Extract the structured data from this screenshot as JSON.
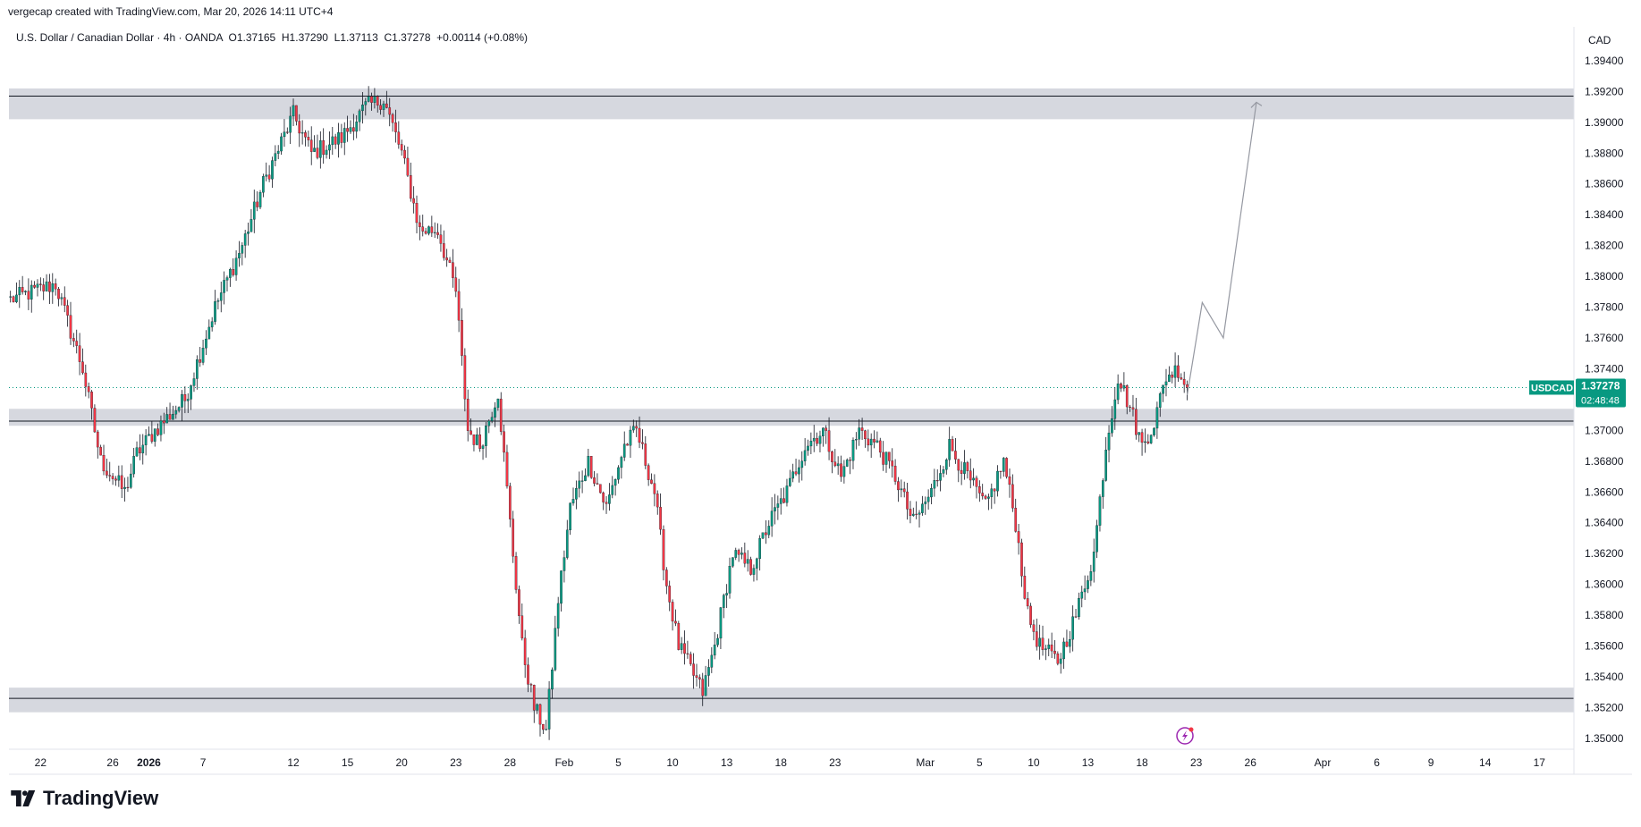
{
  "header": {
    "text": "vergecap created with TradingView.com, Mar 20, 2026 14:11 UTC+4"
  },
  "legend": {
    "symbol_name": "U.S. Dollar / Canadian Dollar",
    "interval": "4h",
    "broker": "OANDA",
    "open": "O1.37165",
    "high": "H1.37290",
    "low": "L1.37113",
    "close": "C1.37278",
    "change": "+0.00114 (+0.08%)"
  },
  "brand": {
    "name": "TradingView"
  },
  "colors": {
    "up": "#089981",
    "down": "#f23645",
    "wick": "#131722",
    "zone": "#d1d4dc",
    "price_tag": "#089981"
  },
  "chart_data": {
    "type": "candlestick",
    "currency_label": "CAD",
    "price_tag": {
      "symbol": "USDCAD",
      "price": "1.37278",
      "countdown": "02:48:48",
      "value": 1.37278
    },
    "y_ticks": [
      "1.39400",
      "1.39200",
      "1.39000",
      "1.38800",
      "1.38600",
      "1.38400",
      "1.38200",
      "1.38000",
      "1.37800",
      "1.37600",
      "1.37400",
      "1.37200",
      "1.37000",
      "1.36800",
      "1.36600",
      "1.36400",
      "1.36200",
      "1.36000",
      "1.35800",
      "1.35600",
      "1.35400",
      "1.35200",
      "1.35000"
    ],
    "ylim": [
      1.3493,
      1.3962
    ],
    "x_ticks": [
      {
        "label": "22",
        "bar": 10
      },
      {
        "label": "26",
        "bar": 34
      },
      {
        "label": "2026",
        "bar": 46,
        "bold": true
      },
      {
        "label": "7",
        "bar": 64
      },
      {
        "label": "12",
        "bar": 94
      },
      {
        "label": "15",
        "bar": 112
      },
      {
        "label": "20",
        "bar": 130
      },
      {
        "label": "23",
        "bar": 148
      },
      {
        "label": "28",
        "bar": 166
      },
      {
        "label": "Feb",
        "bar": 184
      },
      {
        "label": "5",
        "bar": 202
      },
      {
        "label": "10",
        "bar": 220
      },
      {
        "label": "13",
        "bar": 238
      },
      {
        "label": "18",
        "bar": 256
      },
      {
        "label": "23",
        "bar": 274
      },
      {
        "label": "Mar",
        "bar": 304
      },
      {
        "label": "5",
        "bar": 322
      },
      {
        "label": "10",
        "bar": 340
      },
      {
        "label": "13",
        "bar": 358
      },
      {
        "label": "18",
        "bar": 376
      },
      {
        "label": "23",
        "bar": 394
      },
      {
        "label": "26",
        "bar": 412
      },
      {
        "label": "Apr",
        "bar": 436
      },
      {
        "label": "6",
        "bar": 454
      },
      {
        "label": "9",
        "bar": 472
      },
      {
        "label": "14",
        "bar": 490
      },
      {
        "label": "17",
        "bar": 508
      }
    ],
    "bar_count_visible": 520,
    "zones": [
      {
        "top": 1.3922,
        "bottom": 1.3902,
        "line": 1.3917
      },
      {
        "top": 1.3714,
        "bottom": 1.3703,
        "line": 1.3706
      },
      {
        "top": 1.3533,
        "bottom": 1.3517,
        "line": 1.3526
      }
    ],
    "projection_path": [
      {
        "bar": 391,
        "price": 1.3723
      },
      {
        "bar": 396,
        "price": 1.3783
      },
      {
        "bar": 403,
        "price": 1.376
      },
      {
        "bar": 414,
        "price": 1.3913
      }
    ],
    "waypoints": [
      {
        "bar": 0,
        "price": 1.3785
      },
      {
        "bar": 15,
        "price": 1.3795
      },
      {
        "bar": 24,
        "price": 1.374
      },
      {
        "bar": 30,
        "price": 1.368
      },
      {
        "bar": 38,
        "price": 1.366
      },
      {
        "bar": 42,
        "price": 1.3685
      },
      {
        "bar": 48,
        "price": 1.37
      },
      {
        "bar": 58,
        "price": 1.372
      },
      {
        "bar": 68,
        "price": 1.378
      },
      {
        "bar": 77,
        "price": 1.382
      },
      {
        "bar": 84,
        "price": 1.386
      },
      {
        "bar": 94,
        "price": 1.3905
      },
      {
        "bar": 100,
        "price": 1.388
      },
      {
        "bar": 110,
        "price": 1.389
      },
      {
        "bar": 118,
        "price": 1.391
      },
      {
        "bar": 124,
        "price": 1.3915
      },
      {
        "bar": 130,
        "price": 1.388
      },
      {
        "bar": 136,
        "price": 1.383
      },
      {
        "bar": 142,
        "price": 1.383
      },
      {
        "bar": 148,
        "price": 1.379
      },
      {
        "bar": 152,
        "price": 1.37
      },
      {
        "bar": 156,
        "price": 1.369
      },
      {
        "bar": 162,
        "price": 1.3725
      },
      {
        "bar": 166,
        "price": 1.364
      },
      {
        "bar": 170,
        "price": 1.356
      },
      {
        "bar": 174,
        "price": 1.352
      },
      {
        "bar": 178,
        "price": 1.3505
      },
      {
        "bar": 182,
        "price": 1.359
      },
      {
        "bar": 186,
        "price": 1.365
      },
      {
        "bar": 192,
        "price": 1.368
      },
      {
        "bar": 198,
        "price": 1.365
      },
      {
        "bar": 204,
        "price": 1.369
      },
      {
        "bar": 208,
        "price": 1.37
      },
      {
        "bar": 214,
        "price": 1.366
      },
      {
        "bar": 218,
        "price": 1.36
      },
      {
        "bar": 222,
        "price": 1.356
      },
      {
        "bar": 226,
        "price": 1.3545
      },
      {
        "bar": 230,
        "price": 1.353
      },
      {
        "bar": 234,
        "price": 1.356
      },
      {
        "bar": 240,
        "price": 1.362
      },
      {
        "bar": 246,
        "price": 1.361
      },
      {
        "bar": 252,
        "price": 1.364
      },
      {
        "bar": 258,
        "price": 1.366
      },
      {
        "bar": 264,
        "price": 1.369
      },
      {
        "bar": 270,
        "price": 1.37
      },
      {
        "bar": 276,
        "price": 1.367
      },
      {
        "bar": 282,
        "price": 1.37
      },
      {
        "bar": 288,
        "price": 1.369
      },
      {
        "bar": 294,
        "price": 1.367
      },
      {
        "bar": 300,
        "price": 1.364
      },
      {
        "bar": 306,
        "price": 1.366
      },
      {
        "bar": 312,
        "price": 1.369
      },
      {
        "bar": 318,
        "price": 1.367
      },
      {
        "bar": 324,
        "price": 1.365
      },
      {
        "bar": 330,
        "price": 1.368
      },
      {
        "bar": 334,
        "price": 1.364
      },
      {
        "bar": 338,
        "price": 1.358
      },
      {
        "bar": 342,
        "price": 1.356
      },
      {
        "bar": 348,
        "price": 1.355
      },
      {
        "bar": 354,
        "price": 1.358
      },
      {
        "bar": 360,
        "price": 1.362
      },
      {
        "bar": 364,
        "price": 1.369
      },
      {
        "bar": 368,
        "price": 1.3735
      },
      {
        "bar": 372,
        "price": 1.3715
      },
      {
        "bar": 376,
        "price": 1.369
      },
      {
        "bar": 380,
        "price": 1.3705
      },
      {
        "bar": 384,
        "price": 1.3735
      },
      {
        "bar": 388,
        "price": 1.374
      },
      {
        "bar": 391,
        "price": 1.3728
      }
    ]
  }
}
